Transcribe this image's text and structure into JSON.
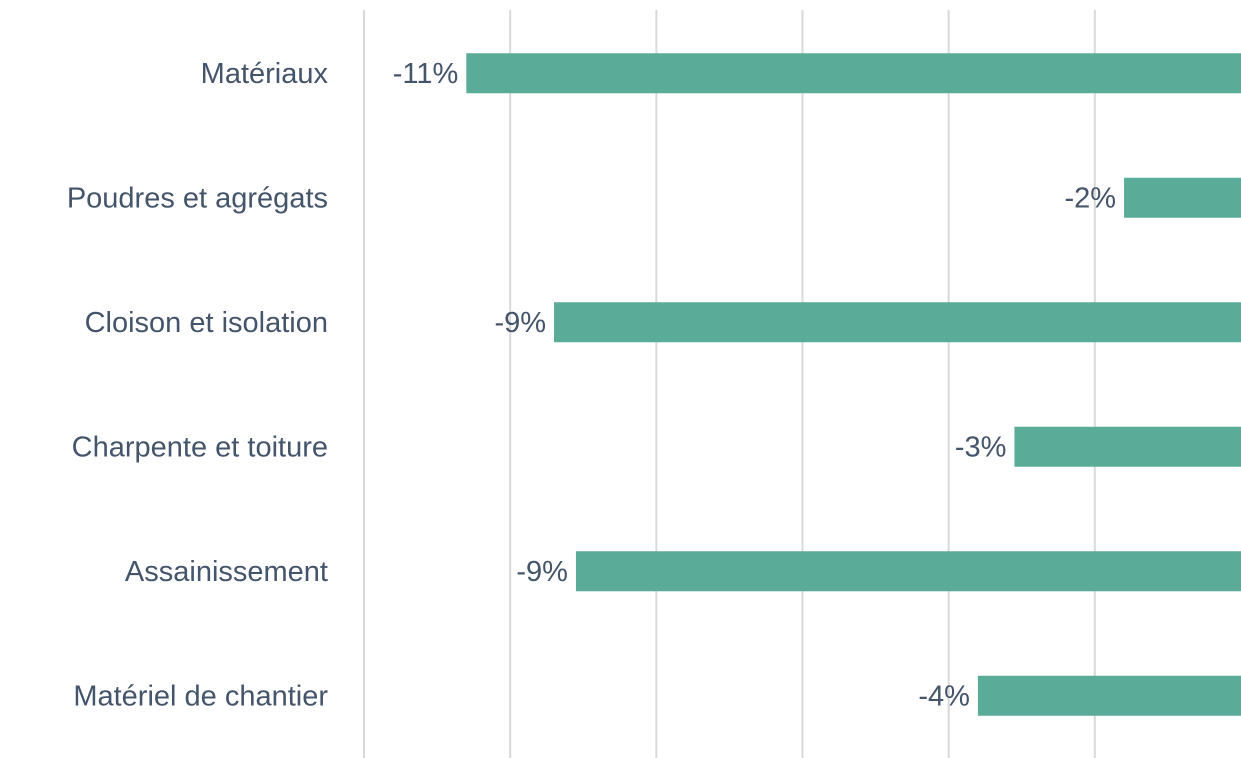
{
  "chart_data": {
    "type": "barh",
    "categories": [
      "Matériaux",
      "Poudres et agrégats",
      "Cloison et isolation",
      "Charpente et toiture",
      "Assainissement",
      "Matériel de chantier"
    ],
    "values": [
      -10.6,
      -1.6,
      -9.4,
      -3.1,
      -9.1,
      -3.6
    ],
    "value_labels": [
      "-11%",
      "-2%",
      "-9%",
      "-3%",
      "-9%",
      "-4%"
    ],
    "color": "#5aab98",
    "xlim": [
      -12,
      0
    ],
    "xticks": [
      -12,
      -10,
      -8,
      -6,
      -4,
      -2
    ],
    "grid": true
  }
}
